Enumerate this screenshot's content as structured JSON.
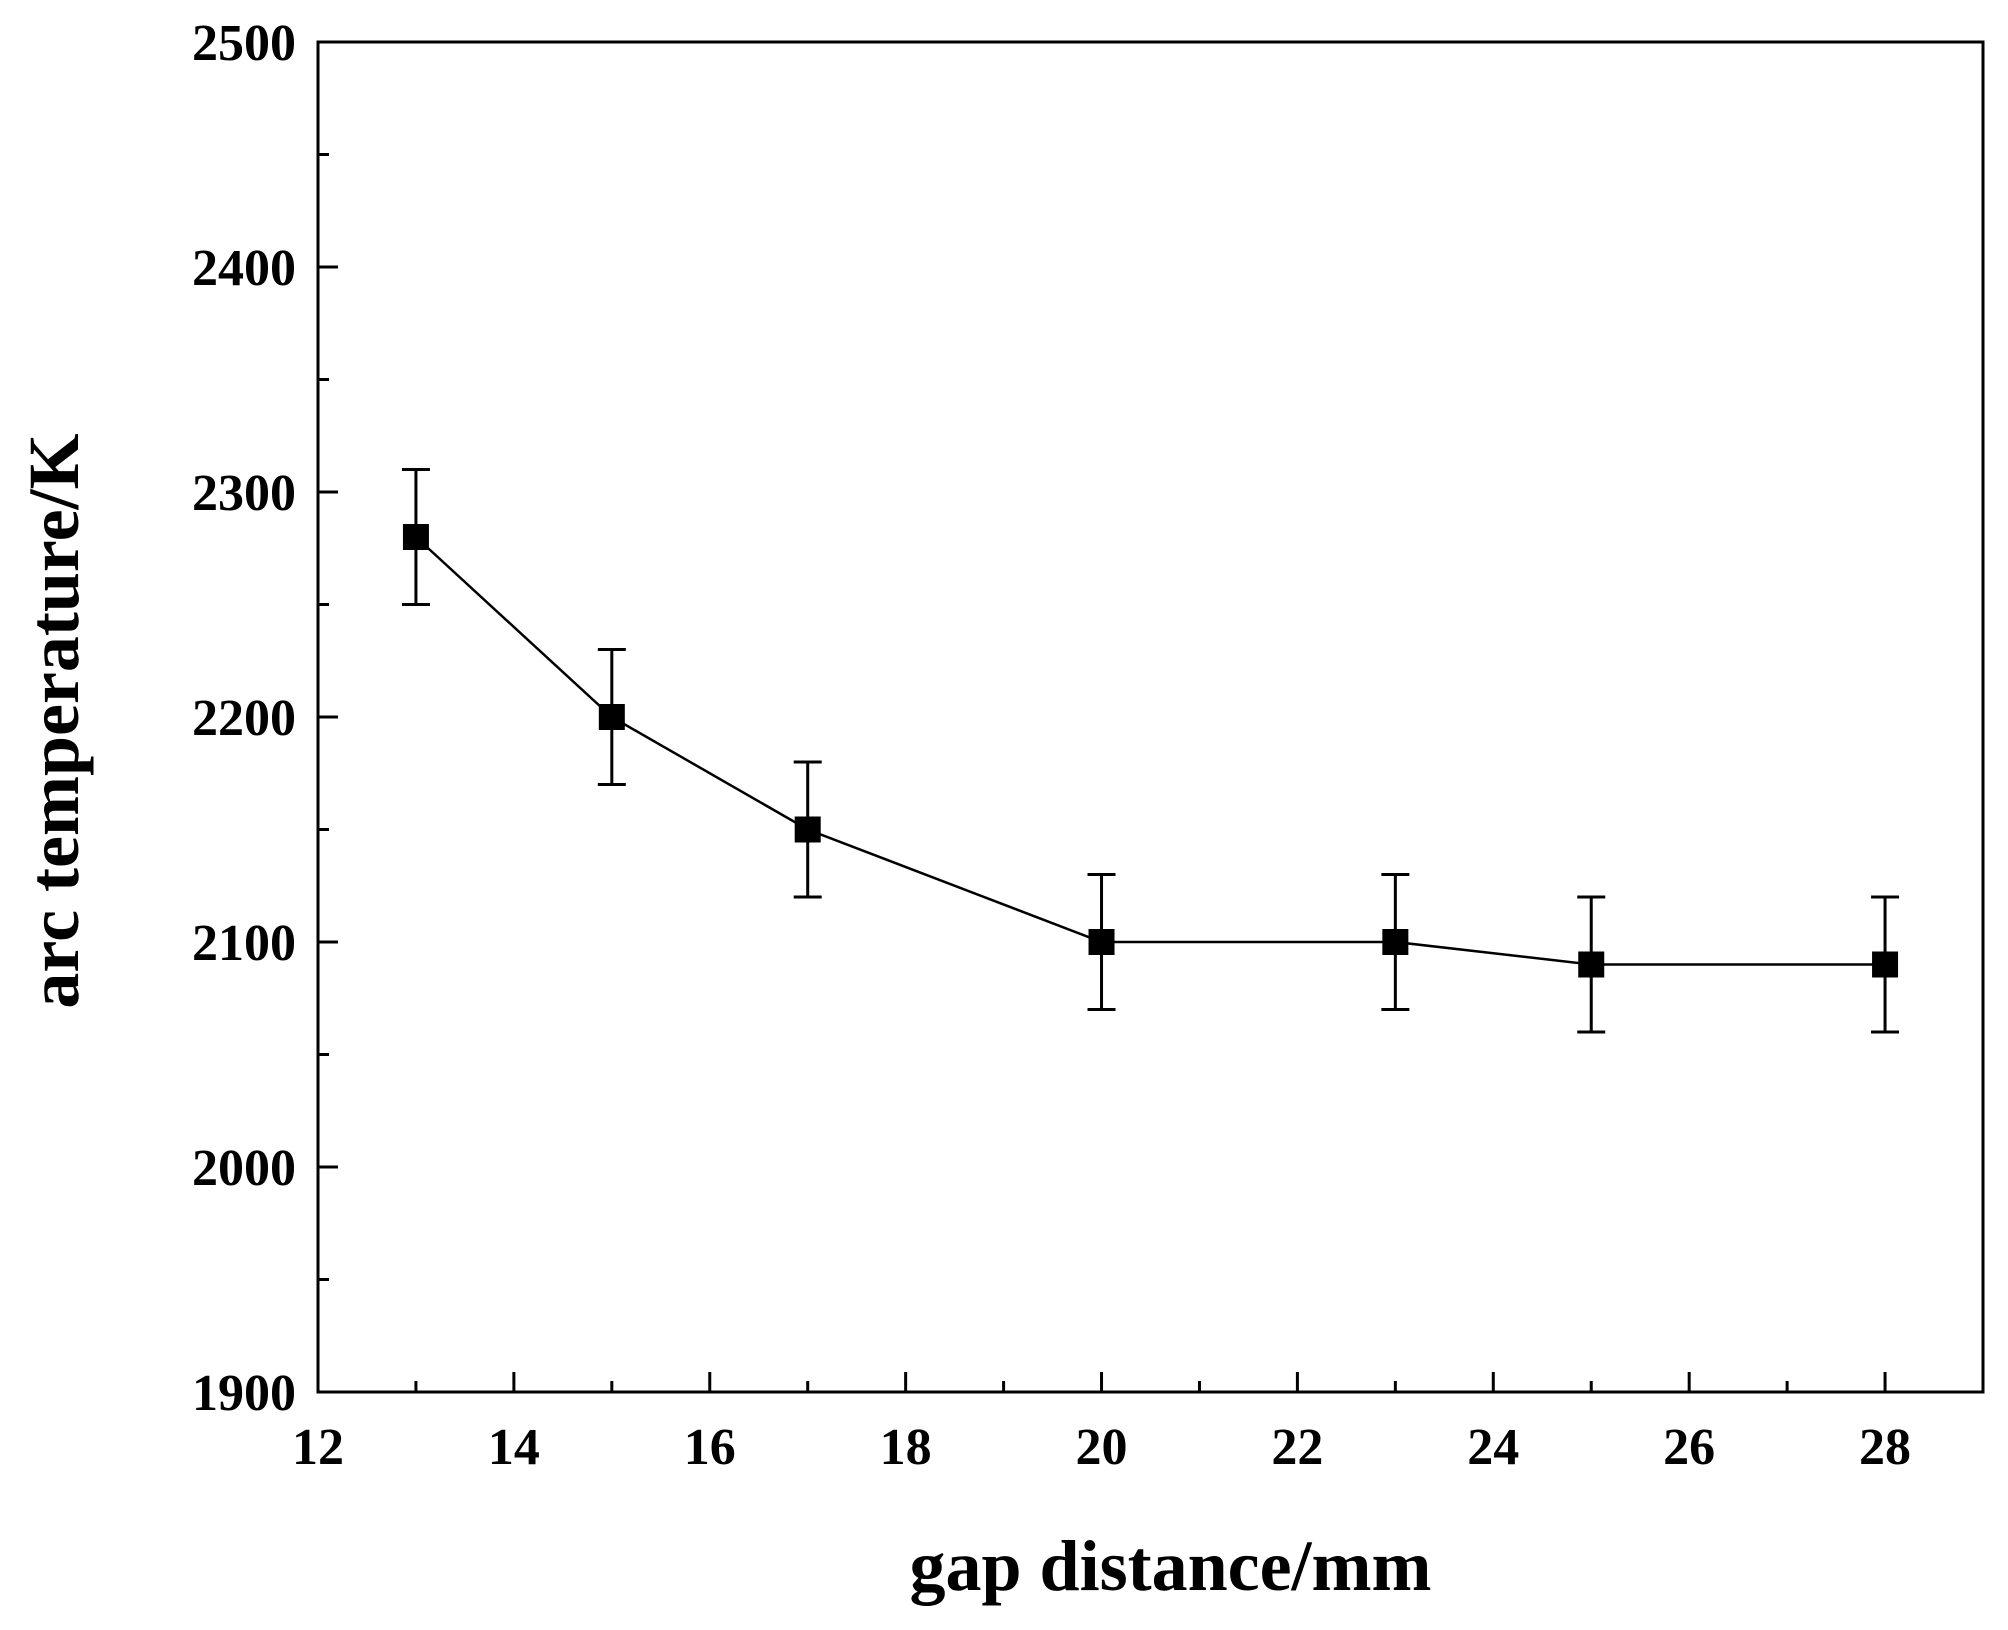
{
  "chart_data": {
    "type": "line",
    "title": "",
    "xlabel": "gap distance/mm",
    "ylabel": "arc temperature/K",
    "xlim": [
      12,
      29
    ],
    "ylim": [
      1900,
      2500
    ],
    "xticks": [
      12,
      14,
      16,
      18,
      20,
      22,
      24,
      26,
      28
    ],
    "yticks": [
      1900,
      2000,
      2100,
      2200,
      2300,
      2400,
      2500
    ],
    "x_minor_step": 1,
    "y_minor_step": 50,
    "grid": false,
    "legend": null,
    "series": [
      {
        "name": "arc temperature",
        "marker": "square",
        "color": "#000000",
        "x": [
          13,
          15,
          17,
          20,
          23,
          25,
          28
        ],
        "y": [
          2280,
          2200,
          2150,
          2100,
          2100,
          2090,
          2090
        ],
        "error": [
          30,
          30,
          30,
          30,
          30,
          30,
          30
        ]
      }
    ]
  }
}
